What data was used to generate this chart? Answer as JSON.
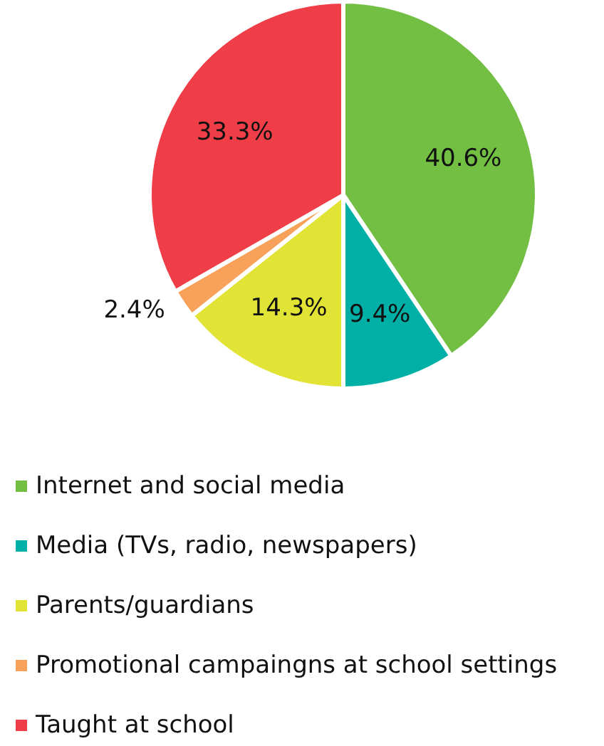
{
  "chart_data": {
    "type": "pie",
    "categories": [
      "Internet and social media",
      "Media (TVs, radio, newspapers)",
      "Parents/guardians",
      "Promotional campaingns at school settings",
      "Taught at school"
    ],
    "values": [
      40.6,
      9.4,
      14.3,
      2.4,
      33.3
    ],
    "value_labels": [
      "40.6%",
      "9.4%",
      "14.3%",
      "2.4%",
      "33.3%"
    ],
    "colors": [
      "#72bf44",
      "#00b0a6",
      "#e1e335",
      "#f7a15a",
      "#ef3e47"
    ],
    "legend": "bottom"
  }
}
